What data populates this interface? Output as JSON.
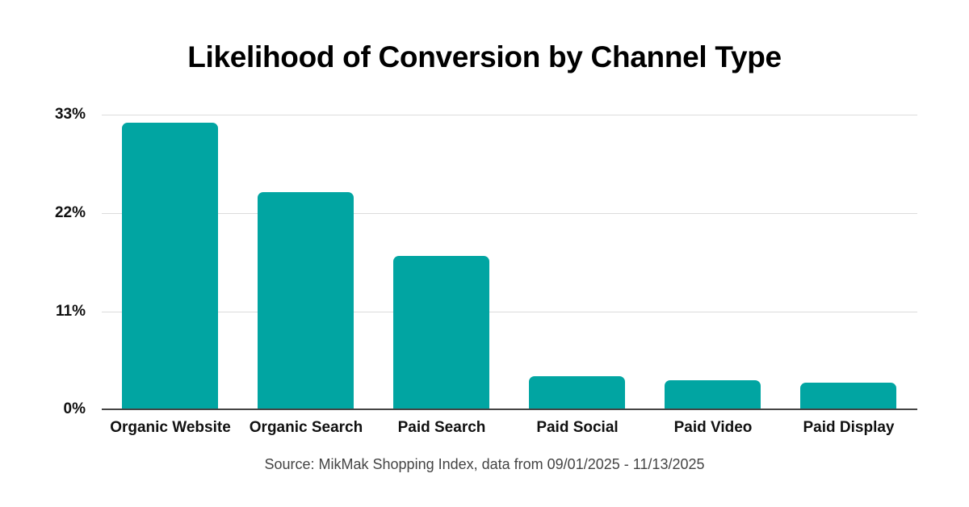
{
  "title": "Likelihood of Conversion by Channel Type",
  "source": "Source: MikMak Shopping Index, data from 09/01/2025 - 11/13/2025",
  "colors": {
    "bar": "#01A5A2",
    "grid": "#dcdcdc",
    "axis": "#444444"
  },
  "y_ticks": [
    "0%",
    "11%",
    "22%",
    "33%"
  ],
  "chart_data": {
    "type": "bar",
    "title": "Likelihood of Conversion by Channel Type",
    "xlabel": "",
    "ylabel": "",
    "categories": [
      "Organic Website",
      "Organic Search",
      "Paid Search",
      "Paid Social",
      "Paid Video",
      "Paid Display"
    ],
    "values": [
      32.1,
      24.3,
      17.2,
      3.7,
      3.3,
      3.0
    ],
    "unit": "%",
    "ylim": [
      0,
      33
    ],
    "yticks": [
      0,
      11,
      22,
      33
    ],
    "grid": true,
    "legend": null,
    "annotations": [
      "Source: MikMak Shopping Index, data from 09/01/2025 - 11/13/2025"
    ]
  }
}
